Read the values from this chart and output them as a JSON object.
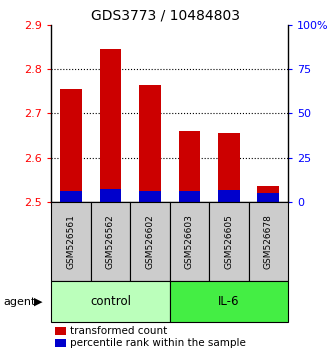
{
  "title": "GDS3773 / 10484803",
  "samples": [
    "GSM526561",
    "GSM526562",
    "GSM526602",
    "GSM526603",
    "GSM526605",
    "GSM526678"
  ],
  "red_values": [
    2.755,
    2.845,
    2.765,
    2.66,
    2.655,
    2.535
  ],
  "blue_values": [
    2.525,
    2.528,
    2.525,
    2.525,
    2.527,
    2.52
  ],
  "ymin": 2.5,
  "ymax": 2.9,
  "yticks_left": [
    2.5,
    2.6,
    2.7,
    2.8,
    2.9
  ],
  "ytick_labels_left": [
    "2.5",
    "2.6",
    "2.7",
    "2.8",
    "2.9"
  ],
  "yticks_right_vals": [
    0,
    25,
    50,
    75,
    100
  ],
  "ytick_labels_right": [
    "0",
    "25",
    "50",
    "75",
    "100%"
  ],
  "grid_lines": [
    2.6,
    2.7,
    2.8
  ],
  "groups": [
    {
      "label": "control",
      "indices": [
        0,
        1,
        2
      ],
      "color": "#bbffbb"
    },
    {
      "label": "IL-6",
      "indices": [
        3,
        4,
        5
      ],
      "color": "#44ee44"
    }
  ],
  "agent_label": "agent",
  "legend_red": "transformed count",
  "legend_blue": "percentile rank within the sample",
  "red_color": "#cc0000",
  "blue_color": "#0000cc",
  "bar_width": 0.55,
  "background_color": "#ffffff",
  "sample_box_color": "#cccccc",
  "title_fontsize": 10,
  "tick_fontsize": 8,
  "legend_fontsize": 7.5
}
